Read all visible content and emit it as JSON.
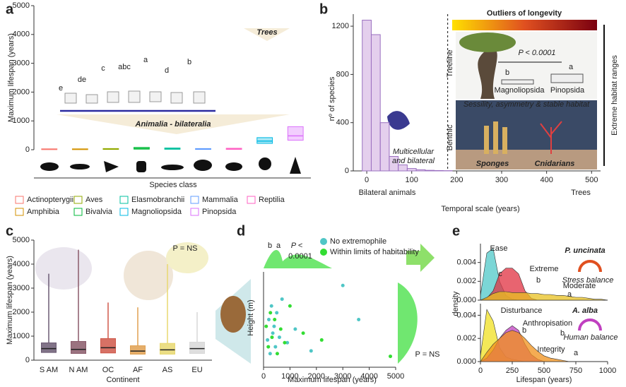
{
  "panel_labels": [
    "a",
    "b",
    "c",
    "d",
    "e"
  ],
  "chart_data": [
    {
      "type": "box",
      "ylabel": "Maximum lifespan (years)",
      "xlabel": "Species class",
      "categories": [
        "Actinopterygii",
        "Amphibia",
        "Aves",
        "Bivalvia",
        "Elasmobranchii",
        "Mammalia",
        "Reptilia",
        "Magnoliopsida",
        "Pinopsida"
      ],
      "colors": [
        "#f8766d",
        "#d39200",
        "#93aa00",
        "#00ba38",
        "#00c19f",
        "#619cff",
        "#ff61c3",
        "#00b9e3",
        "#db72fb"
      ],
      "values": [
        15,
        15,
        20,
        40,
        30,
        20,
        25,
        300,
        480
      ],
      "q1": [
        5,
        5,
        10,
        20,
        15,
        10,
        12,
        220,
        330
      ],
      "q3": [
        30,
        30,
        40,
        80,
        60,
        40,
        50,
        420,
        800
      ],
      "ylim": [
        0,
        5000
      ],
      "yticks": [
        0,
        1000,
        2000,
        3000,
        4000,
        5000
      ],
      "annotations": [
        "Animalia - bilateralia",
        "Trees"
      ],
      "group_letters": [
        "e",
        "de",
        "c",
        "abc",
        "a",
        "d",
        "b"
      ]
    },
    {
      "type": "histogram",
      "ylabel": "nº of species",
      "xlabel": "Temporal scale (years)",
      "bins": [
        -10,
        10,
        30,
        50,
        70,
        90,
        110,
        130,
        150,
        170,
        190
      ],
      "values": [
        1250,
        1130,
        400,
        120,
        50,
        20,
        10,
        5,
        3,
        2
      ],
      "color": "#c9a0dc",
      "threshold": 180,
      "xlim": [
        -30,
        520
      ],
      "xticks": [
        0,
        100,
        200,
        300,
        400,
        500
      ],
      "ylim": [
        0,
        1300
      ],
      "yticks": [
        0,
        400,
        800,
        1200
      ],
      "annotations": [
        "Outliers of longevity",
        "Treeline",
        "Benthic",
        "Extreme habitat ranges",
        "Multicellular",
        "and bilateral",
        "Bilateral animals",
        "Trees",
        "Sessility, asymmetry & stable habitat",
        "Sponges",
        "Cnidarians",
        "P < 0.0001",
        "Magnoliopsida",
        "Pinopsida",
        "b",
        "a"
      ]
    },
    {
      "type": "box",
      "ylabel": "Maximum lifespan (years)",
      "xlabel": "Continent",
      "categories": [
        "S AM",
        "N AM",
        "OC",
        "AF",
        "AS",
        "EU"
      ],
      "colors": [
        "#6b5a73",
        "#8a5a6a",
        "#d0584a",
        "#e0a050",
        "#e8d870",
        "#d8d8d8"
      ],
      "values": [
        480,
        450,
        520,
        380,
        430,
        480
      ],
      "q1": [
        320,
        280,
        300,
        250,
        250,
        280
      ],
      "q3": [
        720,
        780,
        900,
        600,
        700,
        750
      ],
      "max": [
        3600,
        4600,
        2400,
        2200,
        4000,
        2000
      ],
      "ylim": [
        0,
        5000
      ],
      "yticks": [
        0,
        1000,
        2000,
        3000,
        4000,
        5000
      ],
      "annotations": [
        "P = NS"
      ]
    },
    {
      "type": "scatter",
      "ylabel": "Height (m)",
      "xlabel": "Maximum lifespan (years)",
      "series": [
        {
          "name": "No extremophile",
          "color": "#4fc6c6",
          "x": [
            150,
            200,
            250,
            300,
            350,
            400,
            450,
            500,
            600,
            700,
            900,
            1200,
            1800,
            3000,
            3600
          ],
          "values": [
            20,
            35,
            10,
            45,
            25,
            30,
            15,
            40,
            22,
            50,
            18,
            28,
            12,
            60,
            35
          ]
        },
        {
          "name": "Within limits of habitability",
          "color": "#33dd33",
          "x": [
            100,
            180,
            260,
            320,
            420,
            520,
            650,
            800,
            1000,
            1500,
            2200,
            4800
          ],
          "values": [
            30,
            15,
            40,
            22,
            35,
            10,
            28,
            18,
            45,
            25,
            20,
            8
          ]
        }
      ],
      "xlim": [
        0,
        5000
      ],
      "xticks": [
        0,
        1000,
        2000,
        3000,
        4000,
        5000
      ],
      "ylim": [
        0,
        70
      ],
      "annotations": [
        "b",
        "a",
        "P <",
        "0.0001",
        "P = NS"
      ]
    },
    {
      "type": "density",
      "ylabel": "density",
      "x": [
        0,
        50,
        100,
        150,
        200,
        250,
        300,
        350,
        400,
        450,
        500,
        550,
        600,
        650,
        700,
        750,
        800,
        850,
        900,
        950,
        1000
      ],
      "series": [
        {
          "name": "Ease",
          "color": "#4fc8c8",
          "values": [
            0.0005,
            0.005,
            0.0055,
            0.002,
            0.0005,
            0.0001,
            0,
            0,
            0,
            0,
            0,
            0,
            0,
            0,
            0,
            0,
            0,
            0,
            0,
            0,
            0
          ]
        },
        {
          "name": "Extreme",
          "color": "#e03040",
          "values": [
            0,
            0.0002,
            0.001,
            0.0028,
            0.0034,
            0.0034,
            0.0028,
            0.001,
            0.0002,
            0,
            0,
            0,
            0,
            0,
            0,
            0,
            0,
            0,
            0,
            0,
            0
          ]
        },
        {
          "name": "Moderate",
          "color": "#e8c020",
          "values": [
            0,
            0.0003,
            0.0007,
            0.0009,
            0.0009,
            0.0008,
            0.0008,
            0.0008,
            0.0007,
            0.0007,
            0.0006,
            0.0006,
            0.0005,
            0.0005,
            0.0004,
            0.0003,
            0.0003,
            0.0002,
            0.0001,
            0.0001,
            0
          ]
        }
      ],
      "xlim": [
        0,
        1000
      ],
      "ylim": [
        0,
        0.006
      ],
      "yticks": [
        {
          "value": 0,
          "label": "0.000"
        },
        0.002,
        0.004
      ],
      "annotations": [
        "c",
        "b",
        "a",
        "P. uncinata",
        "Stress balance"
      ]
    },
    {
      "type": "density",
      "xlabel": "Lifespan (years)",
      "x": [
        0,
        50,
        100,
        150,
        200,
        250,
        300,
        350,
        400,
        450,
        500,
        550,
        600,
        650,
        700,
        750,
        800,
        850,
        900,
        950,
        1000
      ],
      "series": [
        {
          "name": "Disturbance",
          "color": "#f0e020",
          "values": [
            0.0005,
            0.0045,
            0.0035,
            0.0012,
            0.0004,
            0.0002,
            0.0001,
            0,
            0,
            0,
            0,
            0,
            0,
            0,
            0,
            0,
            0,
            0,
            0,
            0,
            0
          ]
        },
        {
          "name": "Anthropisation",
          "color": "#c040c0",
          "values": [
            0,
            0.0003,
            0.001,
            0.002,
            0.0027,
            0.0031,
            0.0027,
            0.0015,
            0.0006,
            0.0002,
            0,
            0,
            0,
            0,
            0,
            0,
            0,
            0,
            0,
            0,
            0
          ]
        },
        {
          "name": "Integrity",
          "color": "#f0901a",
          "values": [
            0,
            0.0008,
            0.0015,
            0.002,
            0.0025,
            0.0027,
            0.0025,
            0.002,
            0.0014,
            0.0009,
            0.0005,
            0.0003,
            0.0002,
            0.0001,
            0,
            0,
            0,
            0,
            0,
            0,
            0
          ]
        }
      ],
      "xlim": [
        0,
        1000
      ],
      "xticks": [
        0,
        250,
        500,
        750,
        1000
      ],
      "ylim": [
        0,
        0.005
      ],
      "yticks": [
        {
          "value": 0,
          "label": "0.000"
        },
        0.002,
        0.004
      ],
      "annotations": [
        "b",
        "b",
        "a",
        "A. alba",
        "Human balance"
      ]
    }
  ]
}
